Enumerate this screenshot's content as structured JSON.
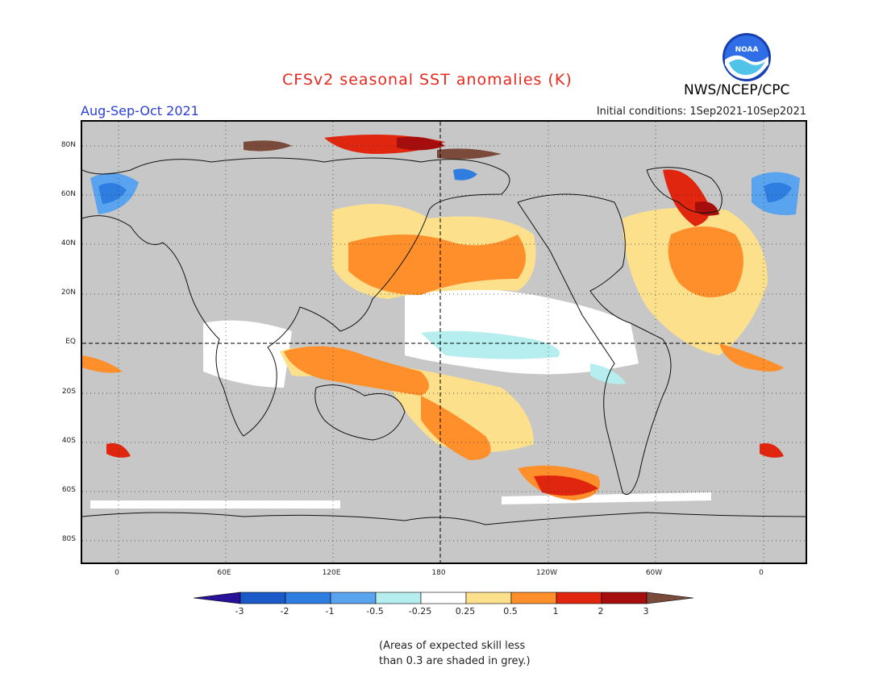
{
  "header": {
    "title": "CFSv2 seasonal SST anomalies (K)",
    "season": "Aug-Sep-Oct 2021",
    "initial_conditions": "Initial conditions: 1Sep2021-10Sep2021",
    "agency": "NWS/NCEP/CPC",
    "logo_text": "NOAA",
    "logo_icon": "noaa-logo-icon"
  },
  "map": {
    "projection": "equirectangular",
    "lon_range": [
      -20,
      380
    ],
    "lat_range": [
      -90,
      90
    ],
    "lat_labels": [
      "80N",
      "60N",
      "40N",
      "20N",
      "EQ",
      "20S",
      "40S",
      "60S",
      "80S"
    ],
    "lon_labels": [
      "0",
      "60E",
      "120E",
      "180",
      "120W",
      "60W",
      "0"
    ],
    "land_color": "#c7c7c7",
    "grid_style": "dotted"
  },
  "legend": {
    "tick_labels": [
      "-3",
      "-2",
      "-1",
      "-0.5",
      "-0.25",
      "0.25",
      "0.5",
      "1",
      "2",
      "3"
    ],
    "colors": [
      "#2a1199",
      "#1b59c9",
      "#2d7ee0",
      "#5aa3ee",
      "#b6eef0",
      "#ffffff",
      "#fde08c",
      "#fe8f2b",
      "#e0260e",
      "#a50e0c",
      "#7a4a3a"
    ]
  },
  "note": {
    "line1": "(Areas of expected skill less",
    "line2": "than 0.3 are shaded in grey.)"
  }
}
